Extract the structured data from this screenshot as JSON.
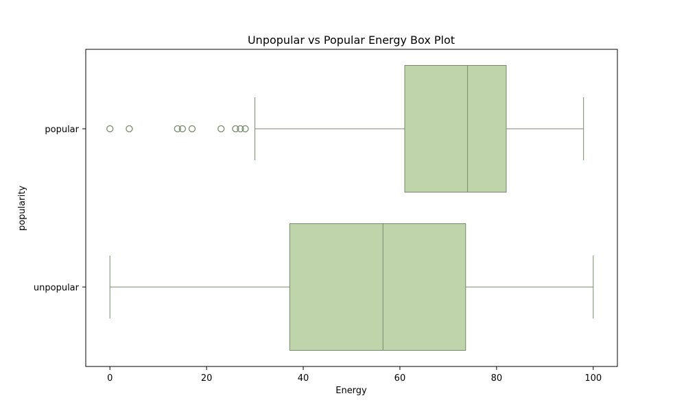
{
  "chart_data": {
    "type": "box",
    "orientation": "horizontal",
    "title": "Unpopular vs Popular Energy Box Plot",
    "xlabel": "Energy",
    "ylabel": "popularity",
    "xlim": [
      -5,
      105
    ],
    "xticks": [
      "0",
      "20",
      "40",
      "60",
      "80",
      "100"
    ],
    "grid": false,
    "box_color": "#bfd4aa",
    "edge_color": "#76896a",
    "categories": [
      "popular",
      "unpopular"
    ],
    "series": [
      {
        "category": "popular",
        "whisker_low": 30,
        "q1": 61,
        "median": 74,
        "q3": 82,
        "whisker_high": 98,
        "outliers": [
          0,
          4,
          14,
          15,
          17,
          23,
          26,
          27,
          28
        ]
      },
      {
        "category": "unpopular",
        "whisker_low": 0,
        "q1": 37.2,
        "median": 56.5,
        "q3": 73.6,
        "whisker_high": 100,
        "outliers": []
      }
    ]
  }
}
